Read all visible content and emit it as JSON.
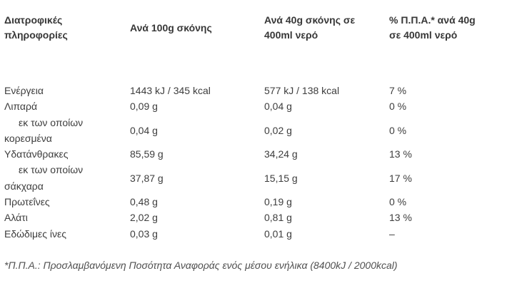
{
  "table": {
    "headers": [
      "Διατροφικές πληροφορίες",
      "Ανά 100g σκόνης",
      "Ανά 40g σκόνης σε 400ml νερό",
      "% Π.Π.Α.* ανά 40g σε 400ml νερό"
    ],
    "rows": [
      {
        "label": "Ενέργεια",
        "per100g": "1443 kJ / 345 kcal",
        "per40g": "577 kJ / 138 kcal",
        "ri": "7 %"
      },
      {
        "label": "Λιπαρά",
        "per100g": "0,09 g",
        "per40g": "0,04 g",
        "ri": "0 %"
      },
      {
        "label": "εκ των οποίων κορεσμένα",
        "per100g": "0,04 g",
        "per40g": "0,02 g",
        "ri": "0 %"
      },
      {
        "label": "Υδατάνθρακες",
        "per100g": "85,59 g",
        "per40g": "34,24 g",
        "ri": "13 %"
      },
      {
        "label": "εκ των οποίων σάκχαρα",
        "per100g": "37,87 g",
        "per40g": "15,15 g",
        "ri": "17 %"
      },
      {
        "label": "Πρωτεΐνες",
        "per100g": "0,48 g",
        "per40g": "0,19 g",
        "ri": "0 %"
      },
      {
        "label": "Αλάτι",
        "per100g": "2,02 g",
        "per40g": "0,81 g",
        "ri": "13 %"
      },
      {
        "label": "Εδώδιμες ίνες",
        "per100g": "0,03 g",
        "per40g": "0,01 g",
        "ri": "–"
      }
    ],
    "footnote": "*Π.Π.Α.: Προσλαμβανόμενη Ποσότητα Αναφοράς ενός μέσου ενήλικα (8400kJ / 2000kcal)"
  },
  "colors": {
    "background": "#ffffff",
    "text": "#3d3d3d",
    "header_text": "#373737",
    "footnote_text": "#4f4f4f"
  }
}
